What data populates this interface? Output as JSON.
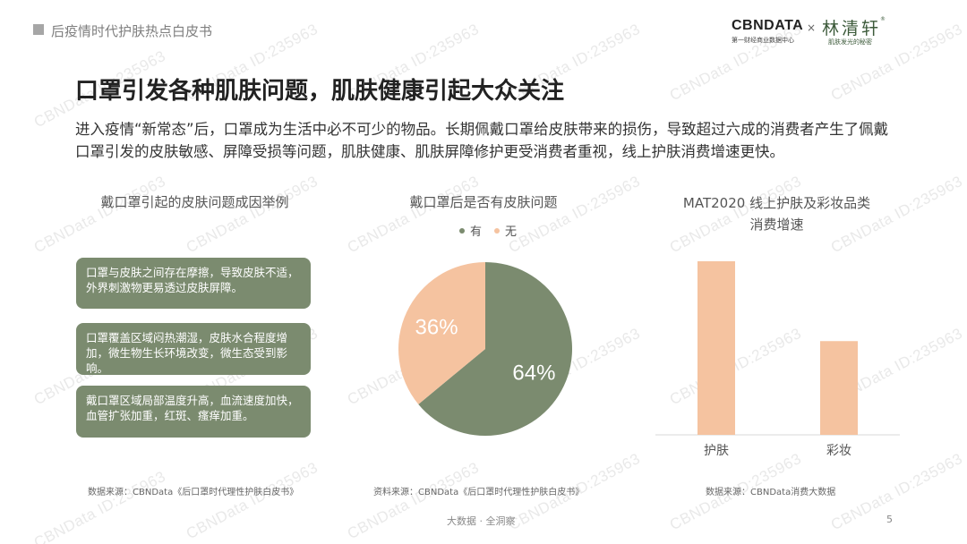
{
  "header": {
    "section": "后疫情时代护肤热点白皮书"
  },
  "logos": {
    "cbn": "CBNDATA",
    "cbn_sub": "第一财经商业数据中心",
    "times": "×",
    "lqx": "林清轩",
    "lqx_sub": "肌肤发光的秘密",
    "lqx_reg": "®"
  },
  "watermark": "CBNData ID:235963",
  "title": "口罩引发各种肌肤问题，肌肤健康引起大众关注",
  "intro": "进入疫情“新常态”后，口罩成为生活中必不可少的物品。长期佩戴口罩给皮肤带来的损伤，导致超过六成的消费者产生了佩戴口罩引发的皮肤敏感、屏障受损等问题，肌肤健康、肌肤屏障修护更受消费者重视，线上护肤消费增速更快。",
  "causes": {
    "title": "戴口罩引起的皮肤问题成因举例",
    "items": [
      "口罩与皮肤之间存在摩擦，导致皮肤不适，外界刺激物更易透过皮肤屏障。",
      "口罩覆盖区域闷热潮湿，皮肤水合程度增加，微生物生长环境改变，微生态受到影响。",
      "戴口罩区域局部温度升高，血流速度加快，血管扩张加重，红斑、瘙痒加重。"
    ]
  },
  "colors": {
    "green": "#7b8b6f",
    "peach": "#f5c3a0",
    "gray_text": "#555555"
  },
  "sources": {
    "causes": "数据来源：CBNData《后口罩时代理性护肤白皮书》",
    "pie": "资料来源：CBNData《后口罩时代理性护肤白皮书》",
    "bars": "数据来源：CBNData消费大数据"
  },
  "footer": {
    "text": "大数据 · 全洞察",
    "page": "5"
  },
  "chart_data": [
    {
      "type": "pie",
      "title": "戴口罩后是否有皮肤问题",
      "series": [
        {
          "name": "有",
          "value": 64,
          "label": "64%",
          "color": "#7b8b6f"
        },
        {
          "name": "无",
          "value": 36,
          "label": "36%",
          "color": "#f5c3a0"
        }
      ],
      "legend_position": "top"
    },
    {
      "type": "bar",
      "title_line1": "MAT2020 线上护肤及彩妆品类",
      "title_line2": "消费增速",
      "categories": [
        "护肤",
        "彩妆"
      ],
      "values": [
        100,
        54
      ],
      "ylim": [
        0,
        100
      ],
      "grid": false,
      "color": "#f5c3a0"
    }
  ]
}
